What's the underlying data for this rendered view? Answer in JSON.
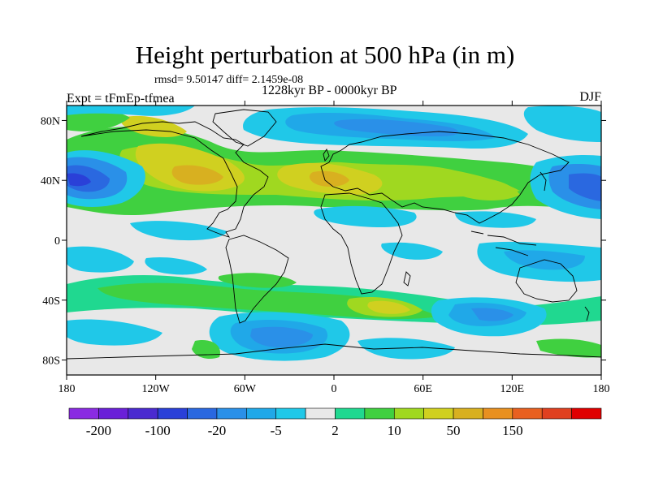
{
  "header": {
    "title": "Height perturbation at 500 hPa (in m)",
    "stats": "rmsd= 9.50147 diff= 2.1459e-08",
    "period": "1228kyr BP - 0000kyr BP",
    "experiment": "Expt = tFmEp-tfmea",
    "season": "DJF"
  },
  "map": {
    "projection": "cylindrical-equidistant",
    "lon_range": [
      -180,
      180
    ],
    "lat_range": [
      -90,
      90
    ],
    "background_color": "#e8e8e8",
    "coastline_color": "#000000",
    "lat_ticks": [
      {
        "value": 80,
        "label": "80N"
      },
      {
        "value": 40,
        "label": "40N"
      },
      {
        "value": 0,
        "label": "0"
      },
      {
        "value": -40,
        "label": "40S"
      },
      {
        "value": -80,
        "label": "80S"
      }
    ],
    "lon_ticks": [
      {
        "value": -180,
        "label": "180"
      },
      {
        "value": -120,
        "label": "120W"
      },
      {
        "value": -60,
        "label": "60W"
      },
      {
        "value": 0,
        "label": "0"
      },
      {
        "value": 60,
        "label": "60E"
      },
      {
        "value": 120,
        "label": "120E"
      },
      {
        "value": 180,
        "label": "180"
      }
    ]
  },
  "colorbar": {
    "colors": [
      "#8a2be2",
      "#6a20d8",
      "#4a2ad0",
      "#2a40d8",
      "#2a68e0",
      "#2a90e8",
      "#20a8e8",
      "#20c8e8",
      "#e8e8e8",
      "#20d890",
      "#40d040",
      "#a0d820",
      "#d0d020",
      "#d8b020",
      "#e89020",
      "#e86020",
      "#e04020",
      "#e00000"
    ],
    "labels": [
      {
        "text": "-200",
        "boundary": 1
      },
      {
        "text": "-100",
        "boundary": 3
      },
      {
        "text": "-20",
        "boundary": 5
      },
      {
        "text": "-5",
        "boundary": 7
      },
      {
        "text": "2",
        "boundary": 9
      },
      {
        "text": "10",
        "boundary": 11
      },
      {
        "text": "50",
        "boundary": 13
      },
      {
        "text": "150",
        "boundary": 15
      }
    ]
  }
}
